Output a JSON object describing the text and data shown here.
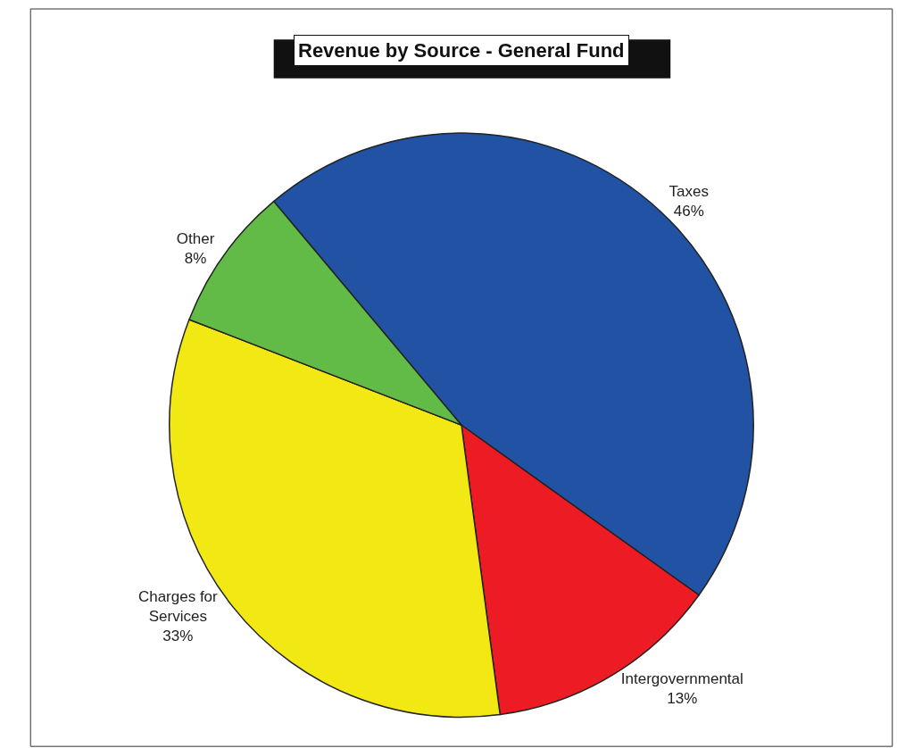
{
  "chart_data": {
    "type": "pie",
    "title": "Revenue by Source - General Fund",
    "categories": [
      "Taxes",
      "Intergovernmental",
      "Charges for\nServices",
      "Other"
    ],
    "values": [
      46,
      13,
      33,
      8
    ],
    "colors": [
      "#2252a3",
      "#ed1c24",
      "#f2e813",
      "#61bb46"
    ],
    "value_labels": [
      "46%",
      "13%",
      "33%",
      "8%"
    ],
    "legend": false
  }
}
